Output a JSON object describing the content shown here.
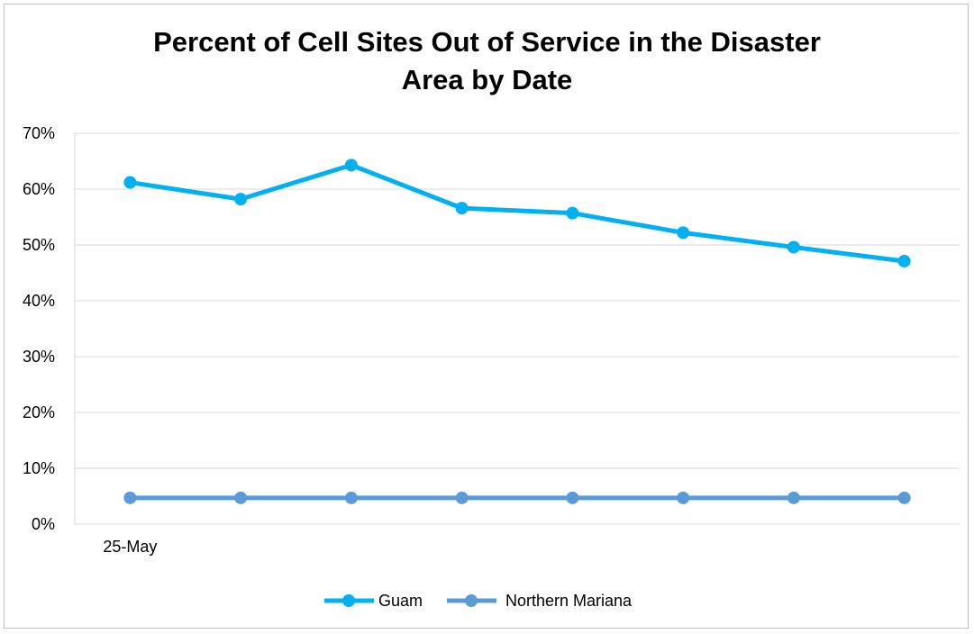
{
  "chart_data": {
    "type": "line",
    "title_lines": [
      "Percent of Cell Sites Out of Service in the Disaster",
      "Area by Date"
    ],
    "x_tick_labels": [
      "25-May",
      "",
      "",
      "",
      "",
      "",
      "",
      ""
    ],
    "y_ticks": [
      "0%",
      "10%",
      "20%",
      "30%",
      "40%",
      "50%",
      "60%",
      "70%"
    ],
    "ylim": [
      0,
      70
    ],
    "grid": true,
    "legend_position": "bottom",
    "series": [
      {
        "name": "Guam",
        "color": "#00B0F0",
        "values": [
          61.2,
          58.2,
          64.3,
          56.6,
          55.7,
          52.2,
          49.6,
          47.1
        ]
      },
      {
        "name": "Northern Mariana",
        "color": "#5B9BD5",
        "values": [
          4.7,
          4.7,
          4.7,
          4.7,
          4.7,
          4.7,
          4.7,
          4.7
        ]
      }
    ]
  }
}
